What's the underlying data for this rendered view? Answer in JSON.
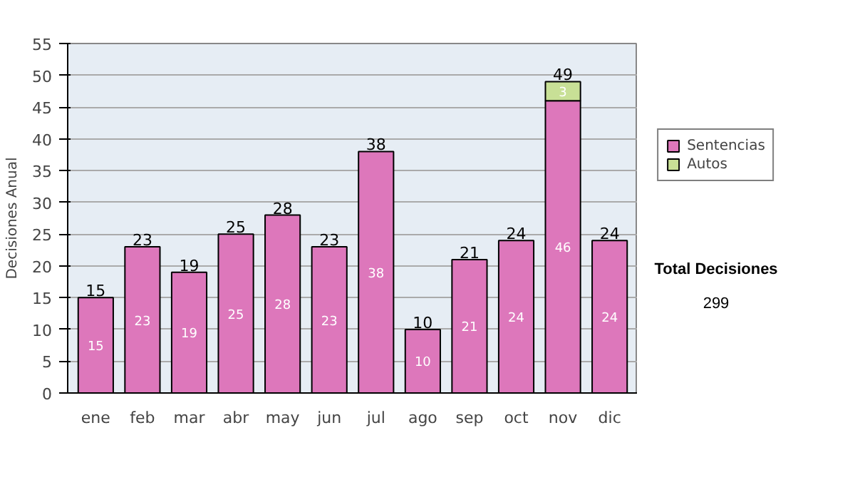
{
  "chart_data": {
    "type": "bar",
    "stacked": true,
    "ylabel": "Decisiones Anual",
    "categories": [
      "ene",
      "feb",
      "mar",
      "abr",
      "may",
      "jun",
      "jul",
      "ago",
      "sep",
      "oct",
      "nov",
      "dic"
    ],
    "series": [
      {
        "name": "Sentencias",
        "color": "#dd77bb",
        "values": [
          15,
          23,
          19,
          25,
          28,
          23,
          38,
          10,
          21,
          24,
          46,
          24
        ]
      },
      {
        "name": "Autos",
        "color": "#c8e096",
        "values": [
          null,
          null,
          null,
          null,
          null,
          null,
          null,
          null,
          null,
          null,
          3,
          null
        ]
      }
    ],
    "ylim": [
      0,
      55
    ],
    "yticks": [
      0,
      5,
      10,
      15,
      20,
      25,
      30,
      35,
      40,
      45,
      50,
      55
    ],
    "grid": "y",
    "legend": "right",
    "data_labels": true,
    "totals": [
      "15",
      "23",
      "19",
      "25",
      "28",
      "23",
      "38",
      "10",
      "21",
      "24",
      "49",
      "24"
    ],
    "annotations": [
      "Total Decisiones",
      "299"
    ]
  }
}
